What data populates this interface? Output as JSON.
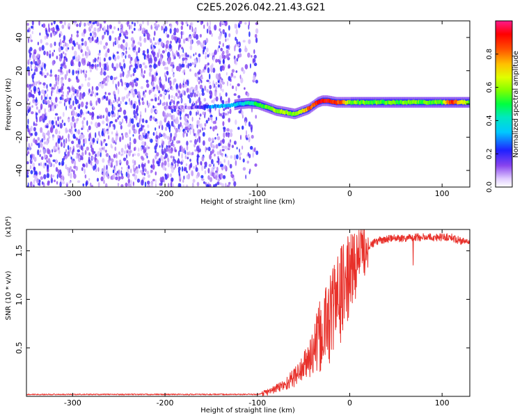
{
  "title": "C2E5.2026.042.21.43.G21",
  "chart_data": [
    {
      "type": "heatmap",
      "xlabel": "Height of straight line (km)",
      "ylabel": "Frequency (Hz)",
      "xlim": [
        -350,
        130
      ],
      "ylim": [
        -50,
        50
      ],
      "x_ticks": [
        -300,
        -200,
        -100,
        0,
        100
      ],
      "y_ticks": [
        -40,
        -20,
        0,
        20,
        40
      ],
      "colorbar": {
        "label": "Normalized spectral amplitude",
        "range": [
          0,
          1
        ],
        "ticks": [
          "0.0",
          "0.2",
          "0.4",
          "0.6",
          "0.8"
        ]
      },
      "noise_region_km": [
        -350,
        -100
      ],
      "signal_trace": {
        "x": [
          -200,
          -170,
          -150,
          -130,
          -120,
          -110,
          -100,
          -90,
          -80,
          -70,
          -60,
          -55,
          -50,
          -45,
          -40,
          -35,
          -30,
          -25,
          -20,
          -15,
          -10,
          -5,
          0,
          10,
          20,
          40,
          60,
          80,
          100,
          110,
          130
        ],
        "y": [
          -2,
          -2,
          -1.5,
          -1,
          0,
          0.5,
          0,
          -2,
          -4,
          -5,
          -6,
          -5,
          -4,
          -3,
          -1,
          1,
          2,
          2,
          1.5,
          1,
          1,
          1,
          1,
          1,
          1,
          1,
          1,
          1,
          1,
          1,
          1
        ],
        "amplitude": [
          0.1,
          0.12,
          0.3,
          0.3,
          0.35,
          0.4,
          0.5,
          0.55,
          0.6,
          0.65,
          0.55,
          0.6,
          0.7,
          0.8,
          0.85,
          0.9,
          0.95,
          0.92,
          0.9,
          0.88,
          0.86,
          0.7,
          0.6,
          0.55,
          0.55,
          0.55,
          0.55,
          0.55,
          0.55,
          0.9,
          0.55
        ]
      }
    },
    {
      "type": "line",
      "xlabel": "Height of straight line (km)",
      "ylabel": "SNR (10 * v/v)",
      "y_multiplier": "(x10⁴)",
      "xlim": [
        -350,
        130
      ],
      "ylim": [
        0,
        1.72
      ],
      "x_ticks": [
        -300,
        -200,
        -100,
        0,
        100
      ],
      "y_ticks": [
        "0.5",
        "1.0",
        "1.5"
      ],
      "series": [
        {
          "color": "#e8302a",
          "x": [
            -350,
            -300,
            -250,
            -200,
            -150,
            -100,
            -90,
            -80,
            -70,
            -60,
            -50,
            -40,
            -30,
            -20,
            -10,
            0,
            10,
            20,
            30,
            40,
            50,
            60,
            70,
            80,
            90,
            100,
            110,
            120,
            130
          ],
          "y": [
            0.02,
            0.02,
            0.02,
            0.02,
            0.02,
            0.02,
            0.04,
            0.08,
            0.12,
            0.2,
            0.3,
            0.45,
            0.65,
            0.85,
            1.05,
            1.25,
            1.45,
            1.55,
            1.6,
            1.62,
            1.63,
            1.63,
            1.64,
            1.64,
            1.64,
            1.64,
            1.64,
            1.6,
            1.6
          ]
        }
      ]
    }
  ]
}
